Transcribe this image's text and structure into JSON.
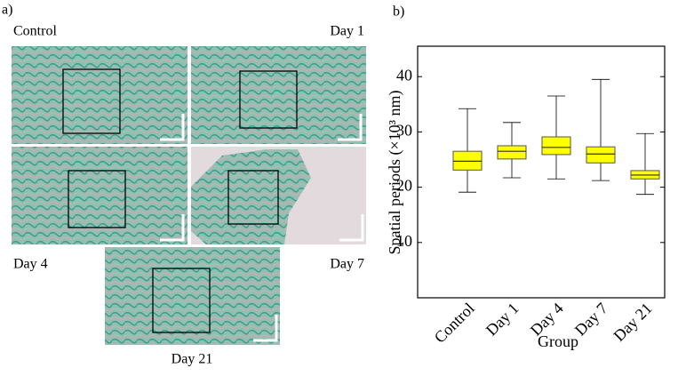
{
  "panel_a": {
    "label": "a)",
    "images": [
      {
        "label": "Control"
      },
      {
        "label": "Day 1"
      },
      {
        "label": "Day 4"
      },
      {
        "label": "Day 7"
      },
      {
        "label": "Day 21"
      }
    ]
  },
  "chart_data": {
    "type": "box",
    "panel_label": "b)",
    "ylabel": "Spatial periods (×10³ nm)",
    "xlabel": "Group",
    "categories": [
      "Control",
      "Day 1",
      "Day 4",
      "Day 7",
      "Day 21"
    ],
    "boxes": [
      {
        "min": 19.1,
        "q1": 23.1,
        "median": 24.7,
        "q3": 26.5,
        "max": 34.2
      },
      {
        "min": 21.7,
        "q1": 25.1,
        "median": 26.5,
        "q3": 27.5,
        "max": 31.7
      },
      {
        "min": 21.5,
        "q1": 25.9,
        "median": 27.2,
        "q3": 29.1,
        "max": 36.5
      },
      {
        "min": 21.2,
        "q1": 24.4,
        "median": 26.0,
        "q3": 27.3,
        "max": 39.5
      },
      {
        "min": 18.7,
        "q1": 21.5,
        "median": 22.2,
        "q3": 23.0,
        "max": 29.7
      }
    ],
    "color": "#ffff00",
    "ylim": [
      0,
      45.5
    ],
    "yticks": [
      10,
      20,
      30,
      40
    ],
    "grid": false
  }
}
